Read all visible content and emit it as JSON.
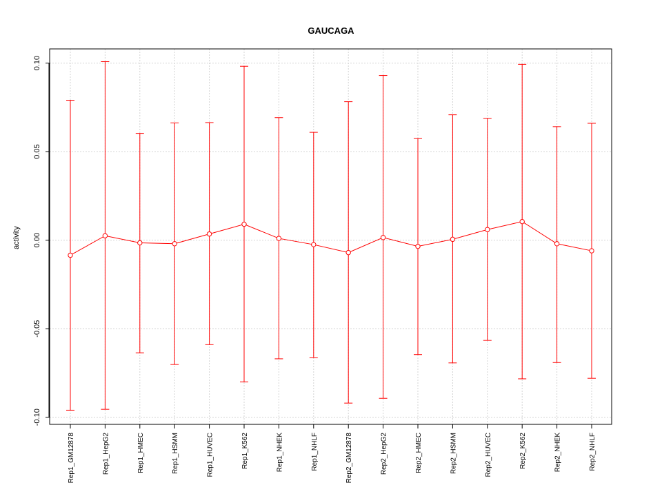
{
  "chart_data": {
    "type": "line",
    "title": "GAUCAGA",
    "xlabel": "",
    "ylabel": "activity",
    "ylim": [
      -0.104,
      0.108
    ],
    "yticks": [
      -0.1,
      -0.05,
      0.0,
      0.05,
      0.1
    ],
    "ytick_labels": [
      "-0.10",
      "-0.05",
      "0.00",
      "0.05",
      "0.10"
    ],
    "grid": true,
    "categories": [
      "Rep1_GM12878",
      "Rep1_HepG2",
      "Rep1_HMEC",
      "Rep1_HSMM",
      "Rep1_HUVEC",
      "Rep1_K562",
      "Rep1_NHEK",
      "Rep1_NHLF",
      "Rep2_GM12878",
      "Rep2_HepG2",
      "Rep2_HMEC",
      "Rep2_HSMM",
      "Rep2_HUVEC",
      "Rep2_K562",
      "Rep2_NHEK",
      "Rep2_NHLF"
    ],
    "series": [
      {
        "values": [
          -0.0085,
          0.0025,
          -0.0015,
          -0.002,
          0.0035,
          0.009,
          0.001,
          -0.0025,
          -0.007,
          0.0015,
          -0.0035,
          0.0005,
          0.006,
          0.0105,
          -0.002,
          -0.006
        ],
        "upper": [
          0.079,
          0.1008,
          0.0603,
          0.0662,
          0.0664,
          0.0982,
          0.0692,
          0.0609,
          0.0782,
          0.093,
          0.0574,
          0.0708,
          0.0688,
          0.0993,
          0.0641,
          0.066
        ],
        "lower": [
          -0.096,
          -0.0955,
          -0.0636,
          -0.0702,
          -0.059,
          -0.08,
          -0.067,
          -0.0663,
          -0.092,
          -0.0893,
          -0.0646,
          -0.0693,
          -0.0566,
          -0.0783,
          -0.0691,
          -0.078
        ],
        "color": "#ff0000"
      }
    ]
  }
}
